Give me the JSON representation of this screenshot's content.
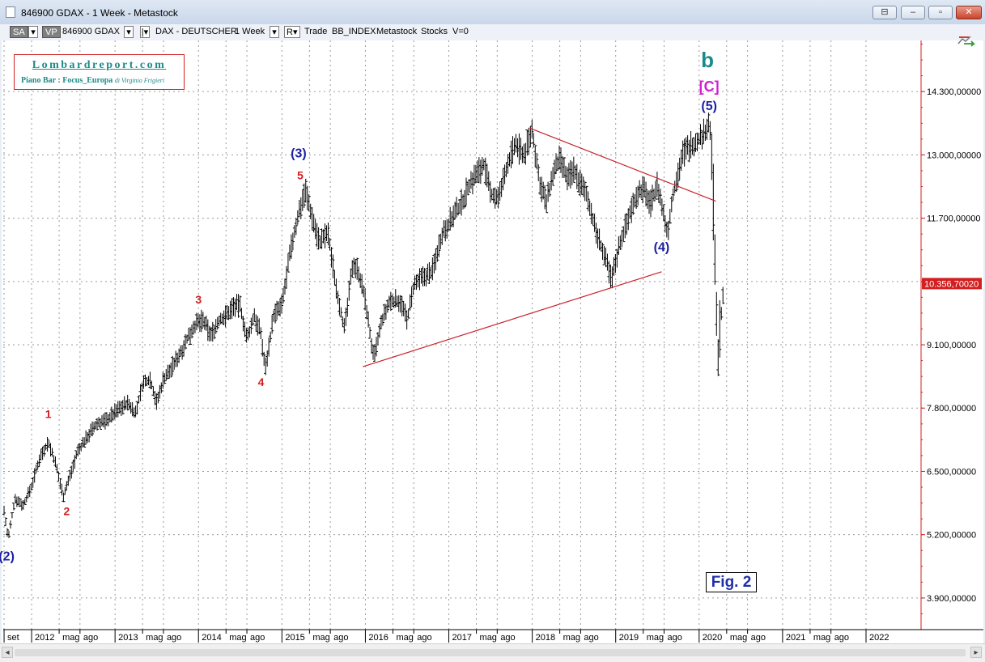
{
  "window": {
    "title": "846900 GDAX - 1 Week - Metastock",
    "controls": [
      "⊟",
      "–",
      "▫",
      "✕"
    ]
  },
  "toolbar": {
    "sa": "SA",
    "vp": "VP",
    "symbol": "846900 GDAX",
    "security": "DAX - DEUTSCHER",
    "period": "1 Week",
    "r": "R",
    "mode": "Trade",
    "source": "BB_INDEX",
    "type": "Metastock",
    "kind": "Stocks",
    "volume": "V=0"
  },
  "logo": {
    "title": "Lombardreport.com",
    "subtitle": "Piano Bar : Focus_Europa",
    "author": "di Virginio Frigieri"
  },
  "figure_label": "Fig.  2",
  "colors": {
    "background": "#ffffff",
    "grid": "#9a9a9a",
    "price_bars": "#000000",
    "trendline": "#c8202a",
    "wave_blue": "#1b1fa5",
    "wave_red": "#d21f1f",
    "wave_teal": "#1a8a8a",
    "wave_magenta": "#d020d0",
    "last_price_bg": "#d21f1f",
    "axis_line": "#d21f1f"
  },
  "chart_data": {
    "type": "ohlc",
    "title": "",
    "xlabel": "",
    "ylabel": "",
    "grid": true,
    "y_scale": "linear",
    "ylim": [
      3250,
      15350
    ],
    "xlim": [
      2011.66,
      2022.65
    ],
    "y_ticks": [
      {
        "value": 3900,
        "label": "3.900,00000"
      },
      {
        "value": 5200,
        "label": "5.200,00000"
      },
      {
        "value": 6500,
        "label": "6.500,00000"
      },
      {
        "value": 7800,
        "label": "7.800,00000"
      },
      {
        "value": 9100,
        "label": "9.100,00000"
      },
      {
        "value": 10400,
        "label": ""
      },
      {
        "value": 11700,
        "label": "11.700,00000"
      },
      {
        "value": 13000,
        "label": "13.000,00000"
      },
      {
        "value": 14300,
        "label": "14.300,00000"
      }
    ],
    "last_price": {
      "value": 10356.7,
      "label": "10.356,70020"
    },
    "x_ticks": [
      {
        "t": 2011.67,
        "label": "set",
        "major": true
      },
      {
        "t": 2012.0,
        "label": "2012",
        "major": true
      },
      {
        "t": 2012.33,
        "label": "mag",
        "major": false
      },
      {
        "t": 2012.58,
        "label": "ago",
        "major": false
      },
      {
        "t": 2013.0,
        "label": "2013",
        "major": true
      },
      {
        "t": 2013.33,
        "label": "mag",
        "major": false
      },
      {
        "t": 2013.58,
        "label": "ago",
        "major": false
      },
      {
        "t": 2014.0,
        "label": "2014",
        "major": true
      },
      {
        "t": 2014.33,
        "label": "mag",
        "major": false
      },
      {
        "t": 2014.58,
        "label": "ago",
        "major": false
      },
      {
        "t": 2015.0,
        "label": "2015",
        "major": true
      },
      {
        "t": 2015.33,
        "label": "mag",
        "major": false
      },
      {
        "t": 2015.58,
        "label": "ago",
        "major": false
      },
      {
        "t": 2016.0,
        "label": "2016",
        "major": true
      },
      {
        "t": 2016.33,
        "label": "mag",
        "major": false
      },
      {
        "t": 2016.58,
        "label": "ago",
        "major": false
      },
      {
        "t": 2017.0,
        "label": "2017",
        "major": true
      },
      {
        "t": 2017.33,
        "label": "mag",
        "major": false
      },
      {
        "t": 2017.58,
        "label": "ago",
        "major": false
      },
      {
        "t": 2018.0,
        "label": "2018",
        "major": true
      },
      {
        "t": 2018.33,
        "label": "mag",
        "major": false
      },
      {
        "t": 2018.58,
        "label": "ago",
        "major": false
      },
      {
        "t": 2019.0,
        "label": "2019",
        "major": true
      },
      {
        "t": 2019.33,
        "label": "mag",
        "major": false
      },
      {
        "t": 2019.58,
        "label": "ago",
        "major": false
      },
      {
        "t": 2020.0,
        "label": "2020",
        "major": true
      },
      {
        "t": 2020.33,
        "label": "mag",
        "major": false
      },
      {
        "t": 2020.58,
        "label": "ago",
        "major": false
      },
      {
        "t": 2021.0,
        "label": "2021",
        "major": true
      },
      {
        "t": 2021.33,
        "label": "mag",
        "major": false
      },
      {
        "t": 2021.58,
        "label": "ago",
        "major": false
      },
      {
        "t": 2022.0,
        "label": "2022",
        "major": true
      }
    ],
    "price_path": [
      [
        2011.67,
        5700
      ],
      [
        2011.72,
        5100
      ],
      [
        2011.8,
        5950
      ],
      [
        2011.9,
        5800
      ],
      [
        2012.0,
        6200
      ],
      [
        2012.1,
        6800
      ],
      [
        2012.2,
        7100
      ],
      [
        2012.28,
        6700
      ],
      [
        2012.38,
        6000
      ],
      [
        2012.42,
        6200
      ],
      [
        2012.55,
        6900
      ],
      [
        2012.7,
        7300
      ],
      [
        2012.8,
        7500
      ],
      [
        2012.9,
        7550
      ],
      [
        2013.05,
        7800
      ],
      [
        2013.15,
        7900
      ],
      [
        2013.25,
        7700
      ],
      [
        2013.33,
        8300
      ],
      [
        2013.42,
        8400
      ],
      [
        2013.5,
        7900
      ],
      [
        2013.58,
        8400
      ],
      [
        2013.67,
        8600
      ],
      [
        2013.8,
        9000
      ],
      [
        2013.95,
        9500
      ],
      [
        2014.05,
        9600
      ],
      [
        2014.15,
        9300
      ],
      [
        2014.25,
        9600
      ],
      [
        2014.33,
        9700
      ],
      [
        2014.42,
        9900
      ],
      [
        2014.5,
        9900
      ],
      [
        2014.58,
        9200
      ],
      [
        2014.67,
        9700
      ],
      [
        2014.75,
        9300
      ],
      [
        2014.8,
        8600
      ],
      [
        2014.9,
        9700
      ],
      [
        2015.0,
        9900
      ],
      [
        2015.1,
        11000
      ],
      [
        2015.2,
        11800
      ],
      [
        2015.28,
        12300
      ],
      [
        2015.35,
        11800
      ],
      [
        2015.45,
        11200
      ],
      [
        2015.55,
        11400
      ],
      [
        2015.65,
        10300
      ],
      [
        2015.75,
        9400
      ],
      [
        2015.85,
        10800
      ],
      [
        2015.92,
        10600
      ],
      [
        2016.0,
        10000
      ],
      [
        2016.1,
        8800
      ],
      [
        2016.2,
        9600
      ],
      [
        2016.3,
        10000
      ],
      [
        2016.42,
        10000
      ],
      [
        2016.5,
        9600
      ],
      [
        2016.58,
        10300
      ],
      [
        2016.7,
        10500
      ],
      [
        2016.8,
        10600
      ],
      [
        2016.92,
        11400
      ],
      [
        2017.0,
        11600
      ],
      [
        2017.15,
        12000
      ],
      [
        2017.25,
        12400
      ],
      [
        2017.33,
        12600
      ],
      [
        2017.42,
        12800
      ],
      [
        2017.5,
        12200
      ],
      [
        2017.6,
        12100
      ],
      [
        2017.7,
        12800
      ],
      [
        2017.8,
        13200
      ],
      [
        2017.9,
        13000
      ],
      [
        2018.0,
        13500
      ],
      [
        2018.08,
        12500
      ],
      [
        2018.17,
        12000
      ],
      [
        2018.25,
        12600
      ],
      [
        2018.33,
        12900
      ],
      [
        2018.42,
        12500
      ],
      [
        2018.5,
        12700
      ],
      [
        2018.58,
        12400
      ],
      [
        2018.67,
        12100
      ],
      [
        2018.75,
        11500
      ],
      [
        2018.85,
        11000
      ],
      [
        2018.95,
        10450
      ],
      [
        2019.05,
        11200
      ],
      [
        2019.15,
        11700
      ],
      [
        2019.25,
        12200
      ],
      [
        2019.33,
        12300
      ],
      [
        2019.42,
        12000
      ],
      [
        2019.5,
        12400
      ],
      [
        2019.58,
        11700
      ],
      [
        2019.62,
        11400
      ],
      [
        2019.7,
        12300
      ],
      [
        2019.8,
        13000
      ],
      [
        2019.9,
        13200
      ],
      [
        2019.98,
        13300
      ],
      [
        2020.05,
        13400
      ],
      [
        2020.12,
        13700
      ],
      [
        2020.15,
        13000
      ],
      [
        2020.18,
        11500
      ],
      [
        2020.2,
        10200
      ],
      [
        2020.22,
        8600
      ],
      [
        2020.25,
        9500
      ],
      [
        2020.3,
        10400
      ]
    ],
    "trendlines": [
      {
        "name": "upper",
        "points": [
          [
            2017.97,
            13550
          ],
          [
            2020.2,
            12050
          ]
        ]
      },
      {
        "name": "lower",
        "points": [
          [
            2015.97,
            8650
          ],
          [
            2019.55,
            10600
          ]
        ]
      }
    ],
    "annotations": [
      {
        "text": "(2)",
        "x": 2011.7,
        "y": 4670,
        "color": "blue",
        "size": 16
      },
      {
        "text": "1",
        "x": 2012.2,
        "y": 7600,
        "color": "red",
        "size": 14
      },
      {
        "text": "2",
        "x": 2012.42,
        "y": 5600,
        "color": "red",
        "size": 14
      },
      {
        "text": "3",
        "x": 2014.0,
        "y": 9950,
        "color": "red",
        "size": 14
      },
      {
        "text": "4",
        "x": 2014.75,
        "y": 8250,
        "color": "red",
        "size": 14
      },
      {
        "text": "5",
        "x": 2015.22,
        "y": 12500,
        "color": "red",
        "size": 14
      },
      {
        "text": "(3)",
        "x": 2015.2,
        "y": 12950,
        "color": "blue",
        "size": 16
      },
      {
        "text": "(4)",
        "x": 2019.55,
        "y": 11020,
        "color": "blue",
        "size": 16
      },
      {
        "text": "(5)",
        "x": 2020.12,
        "y": 13920,
        "color": "blue",
        "size": 16
      },
      {
        "text": "[C]",
        "x": 2020.12,
        "y": 14300,
        "color": "magenta",
        "size": 18
      },
      {
        "text": "b",
        "x": 2020.1,
        "y": 14800,
        "color": "teal",
        "size": 26
      }
    ]
  }
}
